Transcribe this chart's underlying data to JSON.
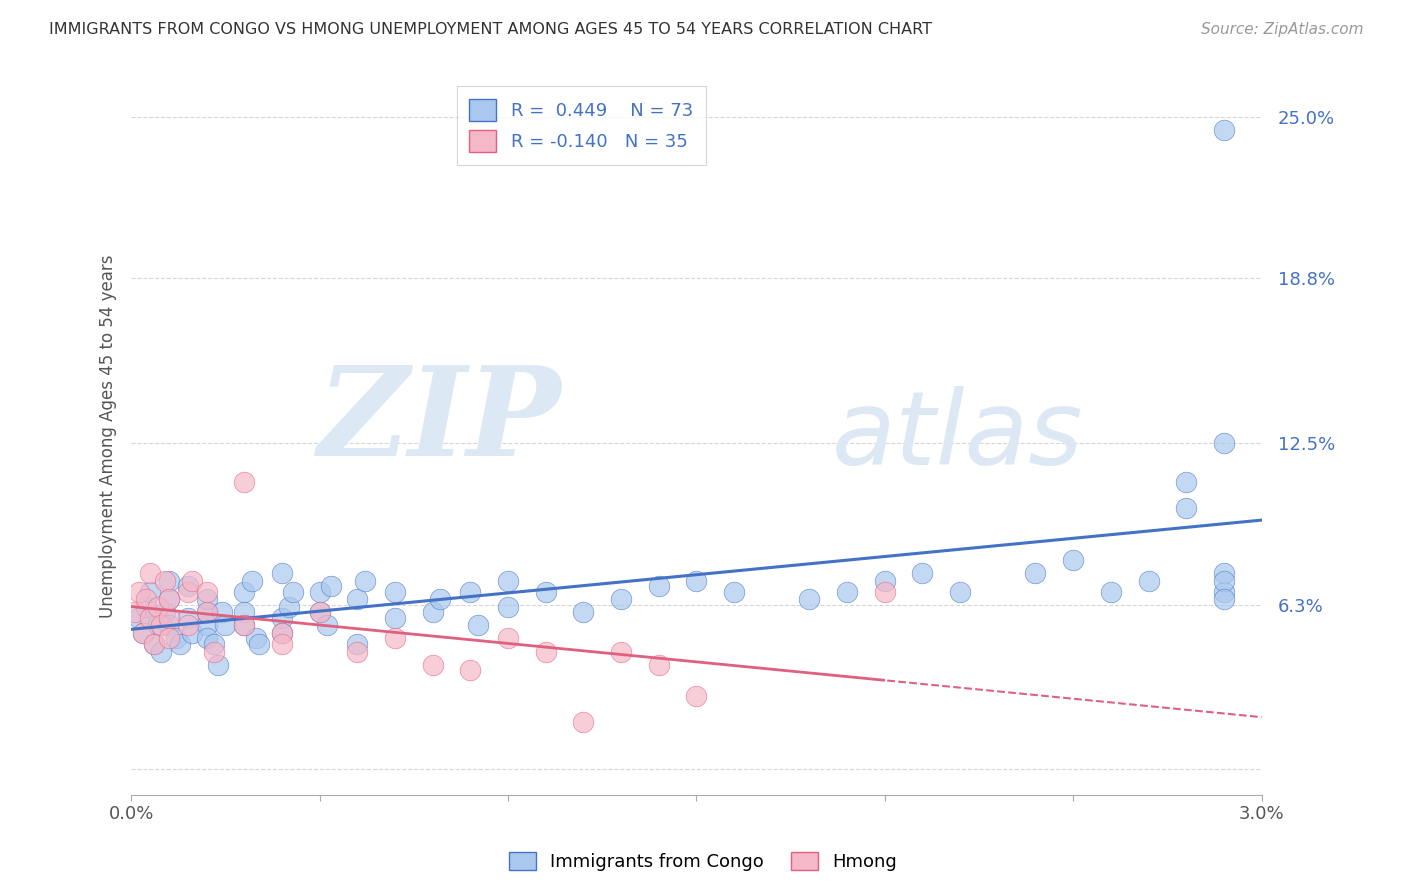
{
  "title": "IMMIGRANTS FROM CONGO VS HMONG UNEMPLOYMENT AMONG AGES 45 TO 54 YEARS CORRELATION CHART",
  "source": "Source: ZipAtlas.com",
  "ylabel": "Unemployment Among Ages 45 to 54 years",
  "ytick_labels": [
    "",
    "6.3%",
    "12.5%",
    "18.8%",
    "25.0%"
  ],
  "ytick_values": [
    0.0,
    0.063,
    0.125,
    0.188,
    0.25
  ],
  "xlim": [
    0.0,
    0.03
  ],
  "ylim": [
    -0.01,
    0.265
  ],
  "legend_r_congo": "R =  0.449",
  "legend_n_congo": "N = 73",
  "legend_r_hmong": "R = -0.140",
  "legend_n_hmong": "N = 35",
  "color_congo": "#aac8ee",
  "color_hmong": "#f5b8c8",
  "color_line_congo": "#4472c4",
  "color_line_hmong": "#e06080",
  "color_legend_text": "#4472c4",
  "watermark_zip": "ZIP",
  "watermark_atlas": "atlas",
  "watermark_color": "#dde8f5",
  "congo_x": [
    0.0002,
    0.0003,
    0.0004,
    0.0005,
    0.0006,
    0.0007,
    0.0008,
    0.0009,
    0.001,
    0.001,
    0.001,
    0.0012,
    0.0013,
    0.0015,
    0.0015,
    0.0016,
    0.002,
    0.002,
    0.002,
    0.002,
    0.0022,
    0.0023,
    0.0024,
    0.0025,
    0.003,
    0.003,
    0.003,
    0.0032,
    0.0033,
    0.0034,
    0.004,
    0.004,
    0.004,
    0.0042,
    0.0043,
    0.005,
    0.005,
    0.0052,
    0.0053,
    0.006,
    0.006,
    0.0062,
    0.007,
    0.007,
    0.008,
    0.0082,
    0.009,
    0.0092,
    0.01,
    0.01,
    0.011,
    0.012,
    0.013,
    0.014,
    0.015,
    0.016,
    0.018,
    0.019,
    0.02,
    0.021,
    0.022,
    0.024,
    0.025,
    0.026,
    0.027,
    0.028,
    0.028,
    0.029,
    0.029,
    0.029,
    0.029,
    0.029,
    0.029
  ],
  "congo_y": [
    0.058,
    0.052,
    0.062,
    0.068,
    0.048,
    0.055,
    0.045,
    0.06,
    0.065,
    0.055,
    0.072,
    0.05,
    0.048,
    0.058,
    0.07,
    0.052,
    0.055,
    0.06,
    0.065,
    0.05,
    0.048,
    0.04,
    0.06,
    0.055,
    0.06,
    0.068,
    0.055,
    0.072,
    0.05,
    0.048,
    0.058,
    0.052,
    0.075,
    0.062,
    0.068,
    0.06,
    0.068,
    0.055,
    0.07,
    0.048,
    0.065,
    0.072,
    0.058,
    0.068,
    0.06,
    0.065,
    0.068,
    0.055,
    0.062,
    0.072,
    0.068,
    0.06,
    0.065,
    0.07,
    0.072,
    0.068,
    0.065,
    0.068,
    0.072,
    0.075,
    0.068,
    0.075,
    0.08,
    0.068,
    0.072,
    0.1,
    0.11,
    0.245,
    0.125,
    0.068,
    0.075,
    0.072,
    0.065
  ],
  "hmong_x": [
    0.0001,
    0.0002,
    0.0003,
    0.0004,
    0.0005,
    0.0005,
    0.0006,
    0.0007,
    0.0008,
    0.0009,
    0.001,
    0.001,
    0.001,
    0.0015,
    0.0015,
    0.0016,
    0.002,
    0.002,
    0.0022,
    0.003,
    0.003,
    0.004,
    0.004,
    0.005,
    0.006,
    0.007,
    0.008,
    0.009,
    0.01,
    0.011,
    0.012,
    0.013,
    0.014,
    0.015,
    0.02
  ],
  "hmong_y": [
    0.06,
    0.068,
    0.052,
    0.065,
    0.058,
    0.075,
    0.048,
    0.062,
    0.055,
    0.072,
    0.058,
    0.065,
    0.05,
    0.055,
    0.068,
    0.072,
    0.06,
    0.068,
    0.045,
    0.055,
    0.11,
    0.052,
    0.048,
    0.06,
    0.045,
    0.05,
    0.04,
    0.038,
    0.05,
    0.045,
    0.018,
    0.045,
    0.04,
    0.028,
    0.068
  ],
  "grid_color": "#cccccc",
  "bg_color": "#ffffff"
}
